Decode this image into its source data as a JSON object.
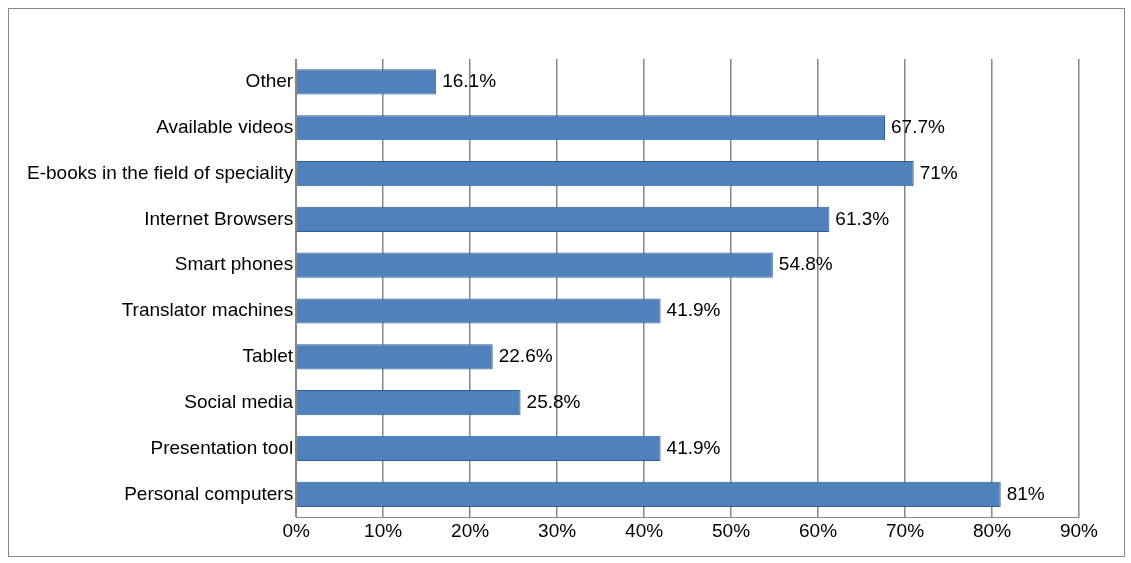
{
  "chart_data": {
    "type": "bar",
    "orientation": "horizontal",
    "categories": [
      "Other",
      "Available videos",
      "E-books in the field of speciality",
      "Internet Browsers",
      "Smart phones",
      "Translator machines",
      "Tablet",
      "Social media",
      "Presentation tool",
      "Personal computers"
    ],
    "values": [
      16.1,
      67.7,
      71,
      61.3,
      54.8,
      41.9,
      22.6,
      25.8,
      41.9,
      81
    ],
    "value_labels": [
      "16.1%",
      "67.7%",
      "71%",
      "61.3%",
      "54.8%",
      "41.9%",
      "22.6%",
      "25.8%",
      "41.9%",
      "81%"
    ],
    "color": "#4f81bd",
    "xlim": [
      0,
      90
    ],
    "xticks": [
      {
        "value": 0,
        "label": "0%"
      },
      {
        "value": 10,
        "label": "10%"
      },
      {
        "value": 20,
        "label": "20%"
      },
      {
        "value": 30,
        "label": "30%"
      },
      {
        "value": 40,
        "label": "40%"
      },
      {
        "value": 50,
        "label": "50%"
      },
      {
        "value": 60,
        "label": "60%"
      },
      {
        "value": 70,
        "label": "70%"
      },
      {
        "value": 80,
        "label": "80%"
      },
      {
        "value": 90,
        "label": "90%"
      }
    ],
    "grid": "x",
    "legend": false
  }
}
